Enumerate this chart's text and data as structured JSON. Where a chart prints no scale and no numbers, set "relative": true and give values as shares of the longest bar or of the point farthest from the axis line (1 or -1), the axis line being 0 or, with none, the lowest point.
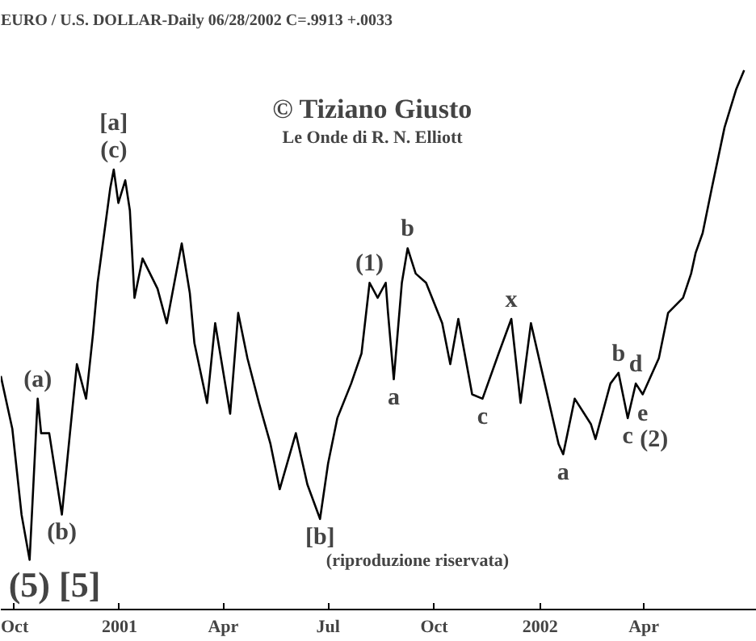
{
  "chart_data": {
    "type": "line",
    "relative": true,
    "title": "EURO / U.S. DOLLAR-Daily  06/28/2002  C=.9913  +.0033",
    "x": [
      "2000-09-20",
      "2000-09-30",
      "2000-10-08",
      "2000-10-15",
      "2000-10-22",
      "2000-10-25",
      "2000-11-01",
      "2000-11-12",
      "2000-11-19",
      "2000-11-25",
      "2000-12-03",
      "2000-12-09",
      "2000-12-13",
      "2000-12-17",
      "2000-12-24",
      "2000-12-27",
      "2000-12-31",
      "2001-01-06",
      "2001-01-10",
      "2001-01-14",
      "2001-01-21",
      "2001-02-03",
      "2001-02-11",
      "2001-02-24",
      "2001-03-03",
      "2001-03-07",
      "2001-03-18",
      "2001-03-25",
      "2001-04-07",
      "2001-04-14",
      "2001-04-22",
      "2001-05-02",
      "2001-05-12",
      "2001-05-20",
      "2001-06-03",
      "2001-06-13",
      "2001-06-24",
      "2001-07-01",
      "2001-07-09",
      "2001-07-21",
      "2001-07-30",
      "2001-08-06",
      "2001-08-13",
      "2001-08-20",
      "2001-08-22",
      "2001-08-27",
      "2001-09-03",
      "2001-09-08",
      "2001-09-15",
      "2001-09-24",
      "2001-10-08",
      "2001-10-15",
      "2001-10-22",
      "2001-11-03",
      "2001-11-12",
      "2001-11-26",
      "2001-12-07",
      "2001-12-15",
      "2001-12-24",
      "2002-01-05",
      "2002-01-17",
      "2002-01-21",
      "2002-01-31",
      "2002-02-14",
      "2002-02-18",
      "2002-03-03",
      "2002-03-10",
      "2002-03-18",
      "2002-03-25",
      "2002-03-31",
      "2002-04-14",
      "2002-04-22",
      "2002-05-05",
      "2002-05-12",
      "2002-05-16",
      "2002-05-22",
      "2002-05-30",
      "2002-06-10",
      "2002-06-20",
      "2002-06-27"
    ],
    "series": [
      {
        "color": "#000000",
        "values": [
          0.433,
          0.335,
          0.176,
          0.092,
          0.391,
          0.327,
          0.327,
          0.176,
          0.327,
          0.455,
          0.391,
          0.511,
          0.606,
          0.67,
          0.782,
          0.816,
          0.754,
          0.796,
          0.74,
          0.578,
          0.651,
          0.595,
          0.531,
          0.679,
          0.587,
          0.494,
          0.383,
          0.531,
          0.363,
          0.55,
          0.466,
          0.383,
          0.307,
          0.223,
          0.327,
          0.232,
          0.168,
          0.271,
          0.355,
          0.419,
          0.475,
          0.606,
          0.578,
          0.606,
          0.55,
          0.427,
          0.606,
          0.67,
          0.623,
          0.606,
          0.531,
          0.455,
          0.539,
          0.399,
          0.391,
          0.475,
          0.539,
          0.383,
          0.531,
          0.419,
          0.307,
          0.288,
          0.391,
          0.344,
          0.316,
          0.419,
          0.439,
          0.355,
          0.419,
          0.399,
          0.466,
          0.55,
          0.578,
          0.623,
          0.662,
          0.698,
          0.782,
          0.894,
          0.964,
          1.0
        ]
      }
    ],
    "xlim": [
      "2000-09-20",
      "2002-07-08"
    ],
    "xticks": [
      {
        "value": "2000-10-01",
        "label": "Oct"
      },
      {
        "value": "2001-01-01",
        "label": "2001"
      },
      {
        "value": "2001-04-01",
        "label": "Apr"
      },
      {
        "value": "2001-07-01",
        "label": "Jul"
      },
      {
        "value": "2001-10-01",
        "label": "Oct"
      },
      {
        "value": "2002-01-01",
        "label": "2002"
      },
      {
        "value": "2002-04-01",
        "label": "Apr"
      }
    ],
    "annotations": [
      {
        "text": "(5) [5]",
        "x": "2000-10-15",
        "y": 0.092
      },
      {
        "text": "(a)",
        "x": "2000-10-22",
        "y": 0.391
      },
      {
        "text": "(b)",
        "x": "2000-11-12",
        "y": 0.176
      },
      {
        "text": "(c)",
        "x": "2000-12-27",
        "y": 0.816
      },
      {
        "text": "[a]",
        "x": "2000-12-27",
        "y": 0.816
      },
      {
        "text": "[b]",
        "x": "2001-06-24",
        "y": 0.168
      },
      {
        "text": "(1)",
        "x": "2001-08-06",
        "y": 0.606
      },
      {
        "text": "b",
        "x": "2001-09-08",
        "y": 0.67
      },
      {
        "text": "a",
        "x": "2001-08-27",
        "y": 0.427
      },
      {
        "text": "x",
        "x": "2001-12-07",
        "y": 0.539
      },
      {
        "text": "c",
        "x": "2001-11-12",
        "y": 0.391
      },
      {
        "text": "a",
        "x": "2002-01-21",
        "y": 0.288
      },
      {
        "text": "b",
        "x": "2002-03-10",
        "y": 0.439
      },
      {
        "text": "d",
        "x": "2002-03-25",
        "y": 0.419
      },
      {
        "text": "c",
        "x": "2002-03-18",
        "y": 0.355
      },
      {
        "text": "e",
        "x": "2002-03-31",
        "y": 0.399
      },
      {
        "text": "(2)",
        "x": "2002-03-31",
        "y": 0.399
      },
      "© Tiziano Giusto",
      "Le Onde di R. N. Elliott",
      "(riproduzione riservata)"
    ]
  }
}
